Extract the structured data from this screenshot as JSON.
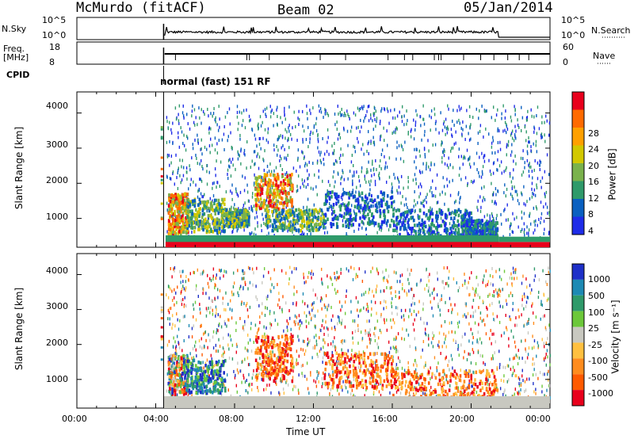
{
  "header": {
    "station": "McMurdo (fitACF)",
    "beam": "Beam 02",
    "date": "05/Jan/2014"
  },
  "strips": {
    "nsky_label": "N.Sky",
    "nsky_ticks": [
      "10^5",
      "10^0"
    ],
    "nsearch_label": "N.Search",
    "nsearch_ticks": [
      "10^5",
      "10^0"
    ],
    "freq_label_1": "Freq.",
    "freq_label_2": "[MHz]",
    "freq_ticks": [
      "18",
      "8"
    ],
    "nave_label": "Nave",
    "nave_ticks": [
      "60",
      "0"
    ],
    "cpid_label": "CPID",
    "cpid_text": "normal (fast) 151 RF"
  },
  "chart_data": [
    {
      "type": "heatmap",
      "name": "power",
      "xlabel": "",
      "ylabel": "Slant Range [km]",
      "y_ticks": [
        "4000",
        "3000",
        "2000",
        "1000"
      ],
      "y_range_km": [
        180,
        4600
      ],
      "x_range_hours": [
        0,
        24
      ],
      "colorbar": {
        "label": "Power [dB]",
        "ticks": [
          "28",
          "24",
          "20",
          "16",
          "12",
          "8",
          "4"
        ],
        "colors": [
          "#e8001c",
          "#ff6a00",
          "#ffa000",
          "#d2c800",
          "#7ab24c",
          "#2f9a6a",
          "#0a60c0",
          "#1e2ce8"
        ]
      },
      "echo_regions": [
        {
          "t0": 4.6,
          "t1": 5.6,
          "r0": 600,
          "r1": 1750,
          "level": "high"
        },
        {
          "t0": 5.5,
          "t1": 7.5,
          "r0": 650,
          "r1": 1600,
          "level": "mid"
        },
        {
          "t0": 7.3,
          "t1": 8.7,
          "r0": 800,
          "r1": 1300,
          "level": "mid"
        },
        {
          "t0": 9.0,
          "t1": 10.9,
          "r0": 1300,
          "r1": 2300,
          "level": "high"
        },
        {
          "t0": 9.5,
          "t1": 12.5,
          "r0": 700,
          "r1": 1300,
          "level": "mid"
        },
        {
          "t0": 12.5,
          "t1": 16.0,
          "r0": 800,
          "r1": 1800,
          "level": "low"
        },
        {
          "t0": 16.0,
          "t1": 20.0,
          "r0": 550,
          "r1": 1300,
          "level": "low"
        },
        {
          "t0": 19.5,
          "t1": 21.3,
          "r0": 500,
          "r1": 1000,
          "level": "low"
        }
      ]
    },
    {
      "type": "heatmap",
      "name": "velocity",
      "xlabel": "Time UT",
      "ylabel": "Slant Range [km]",
      "x_ticks": [
        "00:00",
        "04:00",
        "08:00",
        "12:00",
        "16:00",
        "20:00",
        "00:00"
      ],
      "y_ticks": [
        "4000",
        "3000",
        "2000",
        "1000"
      ],
      "y_range_km": [
        180,
        4600
      ],
      "x_range_hours": [
        0,
        24
      ],
      "colorbar": {
        "label": "Velocity [m s⁻¹]",
        "ticks": [
          "1000",
          "500",
          "100",
          "25",
          "-25",
          "-100",
          "-500",
          "-1000"
        ],
        "colors": [
          "#1e30c8",
          "#1e8ab4",
          "#2f9a6a",
          "#6cc83a",
          "#c8c8c0",
          "#ffc040",
          "#ff8c1e",
          "#ff5a00",
          "#e8001c"
        ]
      },
      "ground_scatter": {
        "t0": 4.4,
        "t1": 24.0,
        "r0": 180,
        "r1": 520,
        "color": "#c8c8c0"
      },
      "echo_regions": [
        {
          "t0": 4.6,
          "t1": 5.6,
          "r0": 600,
          "r1": 1750,
          "sign": "mixed"
        },
        {
          "t0": 5.5,
          "t1": 7.5,
          "r0": 650,
          "r1": 1600,
          "sign": "toward"
        },
        {
          "t0": 9.0,
          "t1": 10.9,
          "r0": 1000,
          "r1": 2300,
          "sign": "away"
        },
        {
          "t0": 12.5,
          "t1": 16.0,
          "r0": 800,
          "r1": 1800,
          "sign": "away"
        },
        {
          "t0": 16.0,
          "t1": 21.3,
          "r0": 500,
          "r1": 1300,
          "sign": "away"
        }
      ]
    }
  ]
}
